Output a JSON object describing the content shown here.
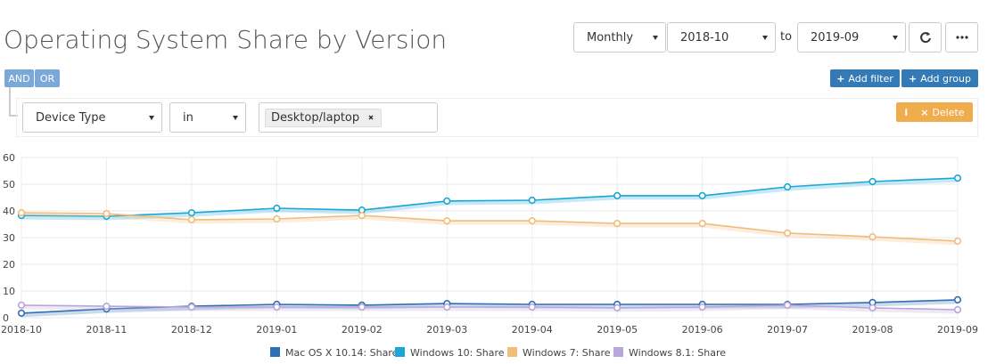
{
  "header": {
    "title": "Operating System Share by Version"
  },
  "controls": {
    "interval": "Monthly",
    "from": "2018-10",
    "to_label": "to",
    "to": "2019-09"
  },
  "logic": [
    "AND",
    "OR"
  ],
  "buttons": {
    "add_filter": "Add filter",
    "add_group": "Add group",
    "delete": "Delete"
  },
  "filter": {
    "field": "Device Type",
    "operator": "in",
    "value": "Desktop/laptop"
  },
  "chart_data": {
    "type": "line",
    "categories": [
      "2018-10",
      "2018-11",
      "2018-12",
      "2019-01",
      "2019-02",
      "2019-03",
      "2019-04",
      "2019-05",
      "2019-06",
      "2019-07",
      "2019-08",
      "2019-09"
    ],
    "series": [
      {
        "name": "Mac OS X 10.14: Share",
        "color": "#2f6fb3",
        "values": [
          1.7,
          3.3,
          4.3,
          5,
          4.7,
          5.3,
          5,
          5,
          5,
          5,
          5.7,
          6.7
        ]
      },
      {
        "name": "Windows 10: Share",
        "color": "#1ba6d6",
        "values": [
          38.3,
          38,
          39.3,
          41,
          40.3,
          43.7,
          44,
          45.7,
          45.7,
          49,
          51,
          52.3
        ]
      },
      {
        "name": "Windows 7: Share",
        "color": "#f0bd7b",
        "values": [
          39.3,
          39,
          36.7,
          37,
          38.3,
          36.3,
          36.3,
          35.3,
          35.3,
          31.7,
          30.3,
          28.7
        ]
      },
      {
        "name": "Windows 8.1: Share",
        "color": "#b9a6d8",
        "values": [
          4.7,
          4.3,
          4,
          4,
          4,
          4,
          4,
          3.7,
          4,
          4.7,
          3.7,
          3
        ]
      }
    ],
    "ylim": [
      0,
      60
    ],
    "yticks": [
      0,
      10,
      20,
      30,
      40,
      50,
      60
    ],
    "grid": true
  }
}
